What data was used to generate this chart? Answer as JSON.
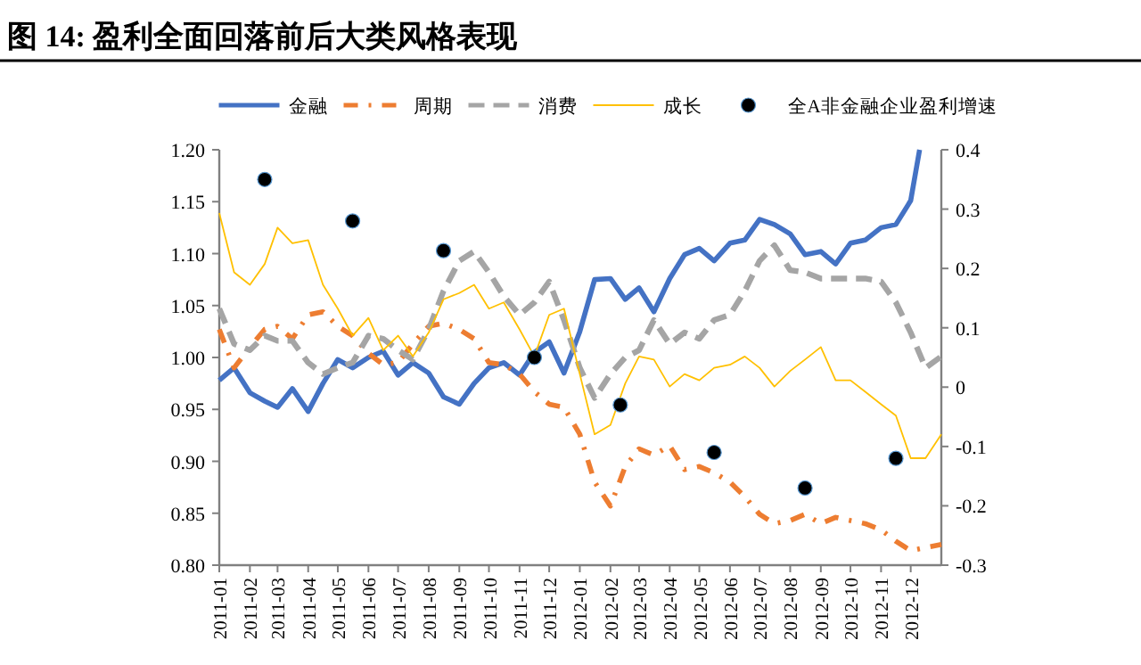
{
  "chart_data": {
    "type": "line",
    "title": "图 14: 盈利全面回落前后大类风格表现",
    "legend": "top",
    "x": [
      "2011-01-01",
      "2011-01-16",
      "2011-02-01",
      "2011-02-16",
      "2011-03-01",
      "2011-03-16",
      "2011-04-01",
      "2011-04-16",
      "2011-05-01",
      "2011-05-16",
      "2011-06-01",
      "2011-06-16",
      "2011-07-01",
      "2011-07-16",
      "2011-08-01",
      "2011-08-16",
      "2011-09-01",
      "2011-09-16",
      "2011-10-01",
      "2011-10-16",
      "2011-11-01",
      "2011-11-16",
      "2011-12-01",
      "2011-12-16",
      "2012-01-01",
      "2012-01-16",
      "2012-02-01",
      "2012-02-16",
      "2012-03-01",
      "2012-03-16",
      "2012-04-01",
      "2012-04-16",
      "2012-05-01",
      "2012-05-16",
      "2012-06-01",
      "2012-06-16",
      "2012-07-01",
      "2012-07-16",
      "2012-08-01",
      "2012-08-16",
      "2012-09-01",
      "2012-09-16",
      "2012-10-01",
      "2012-10-16",
      "2012-11-01",
      "2012-11-16",
      "2012-12-01",
      "2012-12-16",
      "2013-01-01"
    ],
    "xlim": [
      "2011-01-01",
      "2013-01-01"
    ],
    "xticks": [
      "2011-01",
      "2011-02",
      "2011-03",
      "2011-04",
      "2011-05",
      "2011-06",
      "2011-07",
      "2011-08",
      "2011-09",
      "2011-10",
      "2011-11",
      "2011-12",
      "2012-01",
      "2012-02",
      "2012-03",
      "2012-04",
      "2012-05",
      "2012-06",
      "2012-07",
      "2012-08",
      "2012-09",
      "2012-10",
      "2012-11",
      "2012-12"
    ],
    "ylim": [
      0.8,
      1.2
    ],
    "yticks": [
      {
        "value": 0.8,
        "label": "0.80"
      },
      {
        "value": 0.85,
        "label": "0.85"
      },
      {
        "value": 0.9,
        "label": "0.90"
      },
      {
        "value": 0.95,
        "label": "0.95"
      },
      {
        "value": 1.0,
        "label": "1.00"
      },
      {
        "value": 1.05,
        "label": "1.05"
      },
      {
        "value": 1.1,
        "label": "1.10"
      },
      {
        "value": 1.15,
        "label": "1.15"
      },
      {
        "value": 1.2,
        "label": "1.20"
      }
    ],
    "y2lim": [
      -0.3,
      0.4
    ],
    "y2ticks": [
      -0.3,
      -0.2,
      -0.1,
      0,
      0.1,
      0.2,
      0.3,
      0.4
    ],
    "series": [
      {
        "name": "金融",
        "type": "line",
        "color": "#4472c4",
        "line_style": "solid",
        "x": [
          "2011-01-01",
          "2011-01-16",
          "2011-02-01",
          "2011-02-16",
          "2011-03-01",
          "2011-03-16",
          "2011-04-01",
          "2011-04-16",
          "2011-05-01",
          "2011-05-16",
          "2011-06-01",
          "2011-06-16",
          "2011-07-01",
          "2011-07-16",
          "2011-08-01",
          "2011-08-16",
          "2011-09-01",
          "2011-09-16",
          "2011-10-01",
          "2011-10-16",
          "2011-11-01",
          "2011-11-16",
          "2011-12-01",
          "2011-12-16",
          "2012-01-01",
          "2012-01-16",
          "2012-02-01",
          "2012-02-16",
          "2012-03-01",
          "2012-03-16",
          "2012-04-01",
          "2012-04-16",
          "2012-05-01",
          "2012-05-16",
          "2012-06-01",
          "2012-06-16",
          "2012-07-01",
          "2012-07-16",
          "2012-08-01",
          "2012-08-16",
          "2012-09-01",
          "2012-09-16",
          "2012-10-01",
          "2012-10-16",
          "2012-11-01",
          "2012-11-16",
          "2012-12-01",
          "2012-12-10"
        ],
        "values": [
          0.978,
          0.99,
          0.966,
          0.958,
          0.952,
          0.97,
          0.948,
          0.975,
          0.998,
          0.99,
          1.0,
          1.006,
          0.983,
          0.995,
          0.985,
          0.962,
          0.955,
          0.975,
          0.99,
          0.995,
          0.983,
          1.005,
          1.015,
          0.985,
          1.025,
          1.075,
          1.076,
          1.056,
          1.067,
          1.044,
          1.076,
          1.099,
          1.105,
          1.093,
          1.11,
          1.113,
          1.133,
          1.128,
          1.119,
          1.099,
          1.102,
          1.09,
          1.11,
          1.113,
          1.125,
          1.128,
          1.151,
          1.2
        ]
      },
      {
        "name": "周期",
        "type": "line",
        "color": "#ed7d31",
        "line_style": "dashdot",
        "values": [
          1.027,
          0.99,
          1.01,
          1.027,
          1.03,
          1.018,
          1.041,
          1.044,
          1.03,
          1.021,
          1.004,
          0.993,
          0.995,
          1.013,
          1.03,
          1.033,
          1.027,
          1.018,
          0.995,
          0.993,
          0.984,
          0.967,
          0.955,
          0.952,
          0.926,
          0.88,
          0.857,
          0.895,
          0.912,
          0.906,
          0.915,
          0.892,
          0.895,
          0.889,
          0.88,
          0.866,
          0.849,
          0.84,
          0.843,
          0.849,
          0.84,
          0.846,
          0.843,
          0.84,
          0.834,
          0.823,
          0.814,
          0.817,
          0.82
        ]
      },
      {
        "name": "消费",
        "type": "line",
        "color": "#a5a5a5",
        "line_style": "dashed",
        "values": [
          1.047,
          1.013,
          1.007,
          1.021,
          1.016,
          1.016,
          0.995,
          0.984,
          0.99,
          0.995,
          1.021,
          1.018,
          1.007,
          0.998,
          1.027,
          1.064,
          1.093,
          1.102,
          1.082,
          1.059,
          1.041,
          1.053,
          1.073,
          1.036,
          0.99,
          0.961,
          0.984,
          1.0,
          1.007,
          1.036,
          1.013,
          1.024,
          1.018,
          1.036,
          1.041,
          1.064,
          1.093,
          1.108,
          1.084,
          1.082,
          1.076,
          1.076,
          1.076,
          1.076,
          1.073,
          1.053,
          1.024,
          0.99,
          1.001
        ]
      },
      {
        "name": "成长",
        "type": "line",
        "color": "#ffc000",
        "line_style": "solid",
        "values": [
          1.139,
          1.082,
          1.07,
          1.09,
          1.125,
          1.11,
          1.113,
          1.07,
          1.047,
          1.021,
          1.038,
          1.007,
          1.021,
          1.001,
          1.024,
          1.056,
          1.062,
          1.07,
          1.047,
          1.053,
          1.027,
          1.001,
          1.041,
          1.047,
          0.984,
          0.926,
          0.935,
          0.975,
          1.001,
          0.998,
          0.972,
          0.984,
          0.978,
          0.99,
          0.993,
          1.001,
          0.99,
          0.972,
          0.987,
          0.998,
          1.01,
          0.978,
          0.978,
          0.967,
          0.955,
          0.944,
          0.903,
          0.903,
          0.926
        ]
      },
      {
        "name": "全A非金融企业盈利增速",
        "type": "scatter",
        "axis": "y2",
        "color": "#000000",
        "marker": "circle",
        "x": [
          "2011-02-16",
          "2011-05-16",
          "2011-08-16",
          "2011-11-16",
          "2012-02-11",
          "2012-05-16",
          "2012-08-16",
          "2012-11-16"
        ],
        "values": [
          0.35,
          0.28,
          0.23,
          0.05,
          -0.03,
          -0.11,
          -0.17,
          -0.12
        ]
      }
    ]
  }
}
